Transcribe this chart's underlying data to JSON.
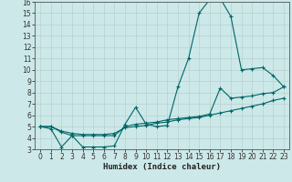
{
  "xlabel": "Humidex (Indice chaleur)",
  "bg_color": "#cce8e8",
  "grid_color": "#b8d0d0",
  "line_color": "#006666",
  "xlim_min": -0.5,
  "xlim_max": 23.5,
  "ylim_min": 3,
  "ylim_max": 16,
  "xticks": [
    0,
    1,
    2,
    3,
    4,
    5,
    6,
    7,
    8,
    9,
    10,
    11,
    12,
    13,
    14,
    15,
    16,
    17,
    18,
    19,
    20,
    21,
    22,
    23
  ],
  "yticks": [
    3,
    4,
    5,
    6,
    7,
    8,
    9,
    10,
    11,
    12,
    13,
    14,
    15,
    16
  ],
  "line1_x": [
    0,
    1,
    2,
    3,
    4,
    5,
    6,
    7,
    8,
    9,
    10,
    11,
    12,
    13,
    14,
    15,
    16,
    17,
    18,
    19,
    20,
    21,
    22,
    23
  ],
  "line1_y": [
    5.0,
    4.8,
    3.2,
    4.2,
    3.2,
    3.2,
    3.2,
    3.3,
    5.2,
    6.7,
    5.2,
    5.0,
    5.1,
    8.5,
    11.0,
    15.0,
    16.2,
    16.3,
    14.7,
    10.0,
    10.1,
    10.2,
    9.5,
    8.5
  ],
  "line2_x": [
    0,
    1,
    2,
    3,
    4,
    5,
    6,
    7,
    8,
    9,
    10,
    11,
    12,
    13,
    14,
    15,
    16,
    17,
    18,
    19,
    20,
    21,
    22,
    23
  ],
  "line2_y": [
    5.0,
    5.0,
    4.5,
    4.2,
    4.2,
    4.2,
    4.2,
    4.2,
    5.0,
    5.2,
    5.3,
    5.4,
    5.6,
    5.7,
    5.8,
    5.9,
    6.1,
    8.4,
    7.5,
    7.6,
    7.7,
    7.9,
    8.0,
    8.5
  ],
  "line3_x": [
    0,
    1,
    2,
    3,
    4,
    5,
    6,
    7,
    8,
    9,
    10,
    11,
    12,
    13,
    14,
    15,
    16,
    17,
    18,
    19,
    20,
    21,
    22,
    23
  ],
  "line3_y": [
    5.0,
    5.0,
    4.6,
    4.4,
    4.3,
    4.3,
    4.3,
    4.4,
    4.9,
    5.0,
    5.1,
    5.3,
    5.4,
    5.6,
    5.7,
    5.8,
    6.0,
    6.2,
    6.4,
    6.6,
    6.8,
    7.0,
    7.3,
    7.5
  ],
  "tick_fontsize": 5.5,
  "xlabel_fontsize": 6.5,
  "marker_size": 3.5,
  "line_width": 0.8
}
